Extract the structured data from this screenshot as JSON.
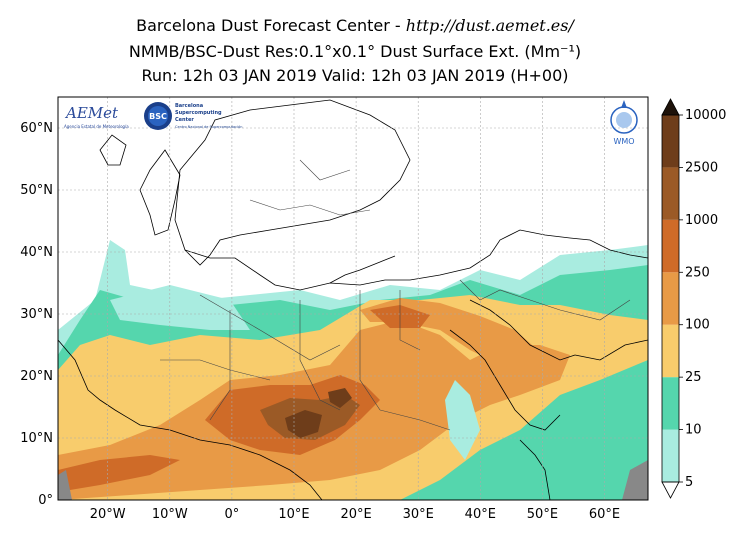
{
  "title": {
    "line1_main": "Barcelona Dust Forecast Center - ",
    "line1_url": "http://dust.aemet.es/",
    "line2": "NMMB/BSC-Dust   Res:0.1°x0.1°   Dust Surface Ext. (Mm⁻¹)",
    "line3": "Run: 12h 03 JAN 2019   Valid: 12h 03 JAN 2019 (H+00)"
  },
  "map": {
    "lat_labels": [
      "60°N",
      "50°N",
      "40°N",
      "30°N",
      "20°N",
      "10°N",
      "0°"
    ],
    "lon_labels": [
      "20°W",
      "10°W",
      "0°",
      "10°E",
      "20°E",
      "30°E",
      "40°E",
      "50°E",
      "60°E"
    ],
    "lat_values": [
      60,
      50,
      40,
      30,
      20,
      10,
      0
    ],
    "lon_values": [
      -20,
      -10,
      0,
      10,
      20,
      30,
      40,
      50,
      60
    ],
    "extent": {
      "lon_min": -28,
      "lon_max": 67,
      "lat_min": 0,
      "lat_max": 65
    },
    "gridlines": "dotted",
    "logos": {
      "aemet": "AEMet",
      "aemet_sub": "Agencia Estatal de Meteorología",
      "bsc": "BSC",
      "bsc_text": [
        "Barcelona",
        "Supercomputing",
        "Center"
      ],
      "bsc_sub": "Centro Nacional de Supercomputación",
      "wmo": "WMO"
    }
  },
  "colorbar": {
    "levels": [
      "5",
      "10",
      "25",
      "100",
      "250",
      "1000",
      "2500",
      "10000"
    ],
    "level_values": [
      5,
      10,
      25,
      100,
      250,
      1000,
      2500,
      10000
    ],
    "colors": [
      "#a9ece0",
      "#55d6ad",
      "#f8cc6c",
      "#e89a46",
      "#cf6b28",
      "#9b5a26",
      "#6e3d1a",
      "#3c2410",
      "#1e120a"
    ],
    "extend": "both"
  }
}
